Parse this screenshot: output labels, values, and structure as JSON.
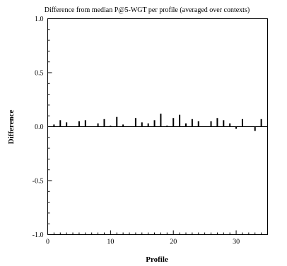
{
  "chart_data": {
    "type": "bar",
    "title": "Difference from median P@5-WGT per profile (averaged over contexts)",
    "xlabel": "Profile",
    "ylabel": "Difference",
    "xlim": [
      0,
      35
    ],
    "ylim": [
      -1.0,
      1.0
    ],
    "x_ticks": [
      0,
      10,
      20,
      30
    ],
    "x_tick_labels": [
      "0",
      "10",
      "20",
      "30"
    ],
    "y_ticks": [
      1.0,
      0.5,
      0.0,
      -0.5,
      -1.0
    ],
    "y_tick_labels": [
      "1.0",
      "0.5",
      "0.0",
      "-0.5",
      "-1.0"
    ],
    "zero_line": true,
    "grid": false,
    "x": [
      1,
      2,
      3,
      4,
      5,
      6,
      7,
      8,
      9,
      10,
      11,
      12,
      13,
      14,
      15,
      16,
      17,
      18,
      19,
      20,
      21,
      22,
      23,
      24,
      25,
      26,
      27,
      28,
      29,
      30,
      31,
      32,
      33,
      34
    ],
    "values": [
      0.02,
      0.06,
      0.04,
      0,
      0.05,
      0.06,
      0,
      0.03,
      0.07,
      0.01,
      0.09,
      0.02,
      0,
      0.08,
      0.04,
      0.03,
      0.06,
      0.12,
      0.01,
      0.08,
      0.11,
      0.03,
      0.07,
      0.05,
      0,
      0.05,
      0.08,
      0.06,
      0.03,
      -0.02,
      0.07,
      0,
      -0.04,
      0.07
    ]
  }
}
